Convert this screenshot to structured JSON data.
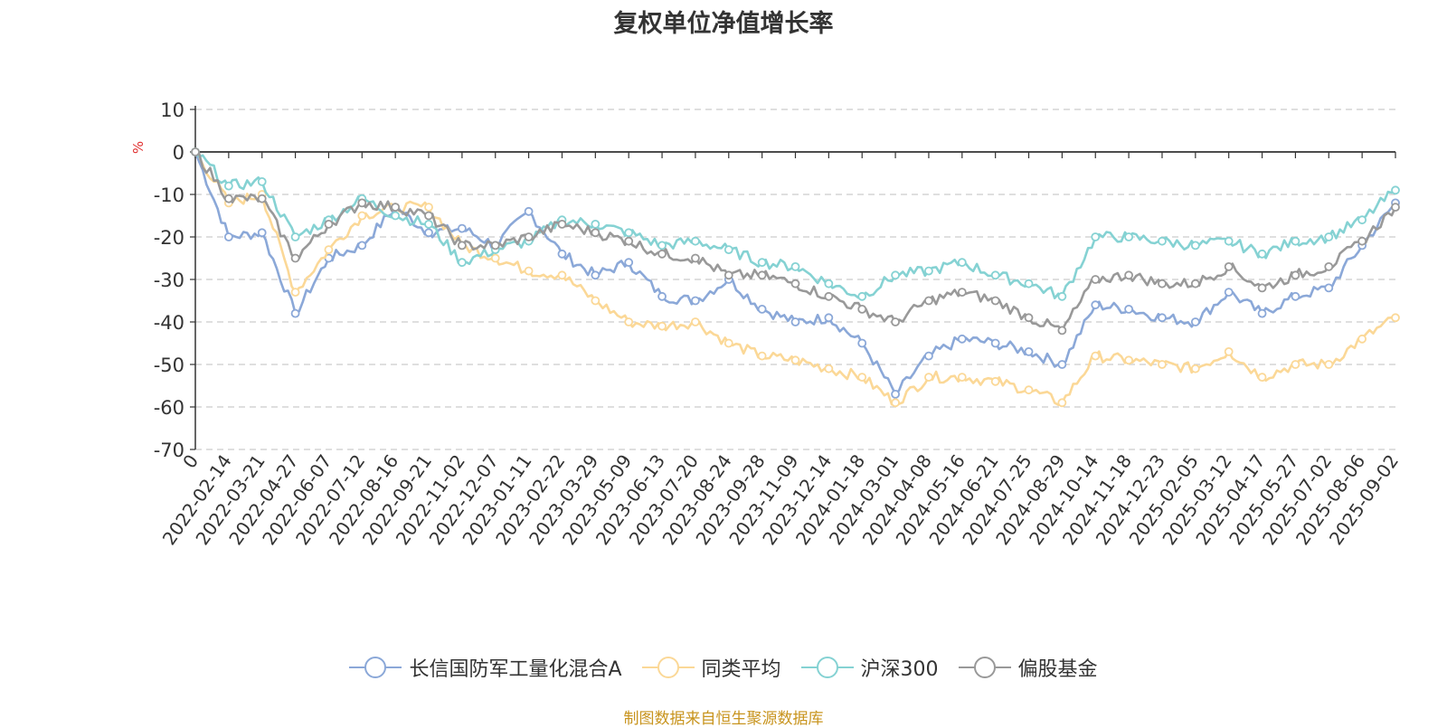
{
  "chart_data": {
    "type": "line",
    "title": "复权单位净值增长率",
    "ylabel": "%",
    "ylim": [
      -70,
      10
    ],
    "yticks": [
      10,
      0,
      -10,
      -20,
      -30,
      -40,
      -50,
      -60,
      -70
    ],
    "x_tick_labels": [
      "0",
      "2022-02-14",
      "2022-03-21",
      "2022-04-27",
      "2022-06-07",
      "2022-07-12",
      "2022-08-16",
      "2022-09-21",
      "2022-11-02",
      "2022-12-07",
      "2023-01-11",
      "2023-02-22",
      "2023-03-29",
      "2023-05-09",
      "2023-06-13",
      "2023-07-20",
      "2023-08-24",
      "2023-09-28",
      "2023-11-09",
      "2023-12-14",
      "2024-01-18",
      "2024-03-01",
      "2024-04-08",
      "2024-05-16",
      "2024-06-21",
      "2024-07-25",
      "2024-08-29",
      "2024-10-14",
      "2024-11-18",
      "2024-12-23",
      "2025-02-05",
      "2025-03-12",
      "2025-04-17",
      "2025-05-27",
      "2025-07-02",
      "2025-08-06",
      "2025-09-02"
    ],
    "grid": true,
    "legend_position": "bottom",
    "series": [
      {
        "name": "长信国防军工量化混合A",
        "color": "#8ba8d8",
        "values": [
          0,
          -20,
          -19,
          -38,
          -25,
          -22,
          -13,
          -19,
          -18,
          -22,
          -14,
          -24,
          -29,
          -26,
          -34,
          -35,
          -30,
          -37,
          -40,
          -39,
          -45,
          -57,
          -48,
          -44,
          -45,
          -47,
          -50,
          -36,
          -37,
          -39,
          -40,
          -33,
          -38,
          -34,
          -32,
          -22,
          -12
        ]
      },
      {
        "name": "同类平均",
        "color": "#fbd897",
        "values": [
          0,
          -12,
          -10,
          -33,
          -23,
          -15,
          -13,
          -13,
          -22,
          -25,
          -28,
          -29,
          -35,
          -40,
          -41,
          -40,
          -45,
          -48,
          -49,
          -51,
          -53,
          -59,
          -53,
          -53,
          -54,
          -56,
          -59,
          -48,
          -49,
          -50,
          -51,
          -47,
          -53,
          -50,
          -50,
          -44,
          -39
        ]
      },
      {
        "name": "沪深300",
        "color": "#85d2d3",
        "values": [
          0,
          -8,
          -7,
          -20,
          -16,
          -11,
          -15,
          -17,
          -26,
          -23,
          -21,
          -16,
          -17,
          -19,
          -22,
          -21,
          -23,
          -26,
          -27,
          -31,
          -34,
          -29,
          -28,
          -26,
          -29,
          -31,
          -34,
          -20,
          -20,
          -21,
          -22,
          -21,
          -24,
          -21,
          -20,
          -16,
          -9
        ]
      },
      {
        "name": "偏股基金",
        "color": "#999999",
        "values": [
          0,
          -11,
          -11,
          -25,
          -17,
          -12,
          -13,
          -15,
          -22,
          -22,
          -20,
          -17,
          -19,
          -21,
          -24,
          -25,
          -29,
          -29,
          -31,
          -34,
          -37,
          -40,
          -35,
          -33,
          -35,
          -39,
          -42,
          -30,
          -29,
          -31,
          -31,
          -27,
          -32,
          -29,
          -27,
          -21,
          -13
        ]
      }
    ]
  },
  "footer": {
    "source": "制图数据来自恒生聚源数据库"
  }
}
